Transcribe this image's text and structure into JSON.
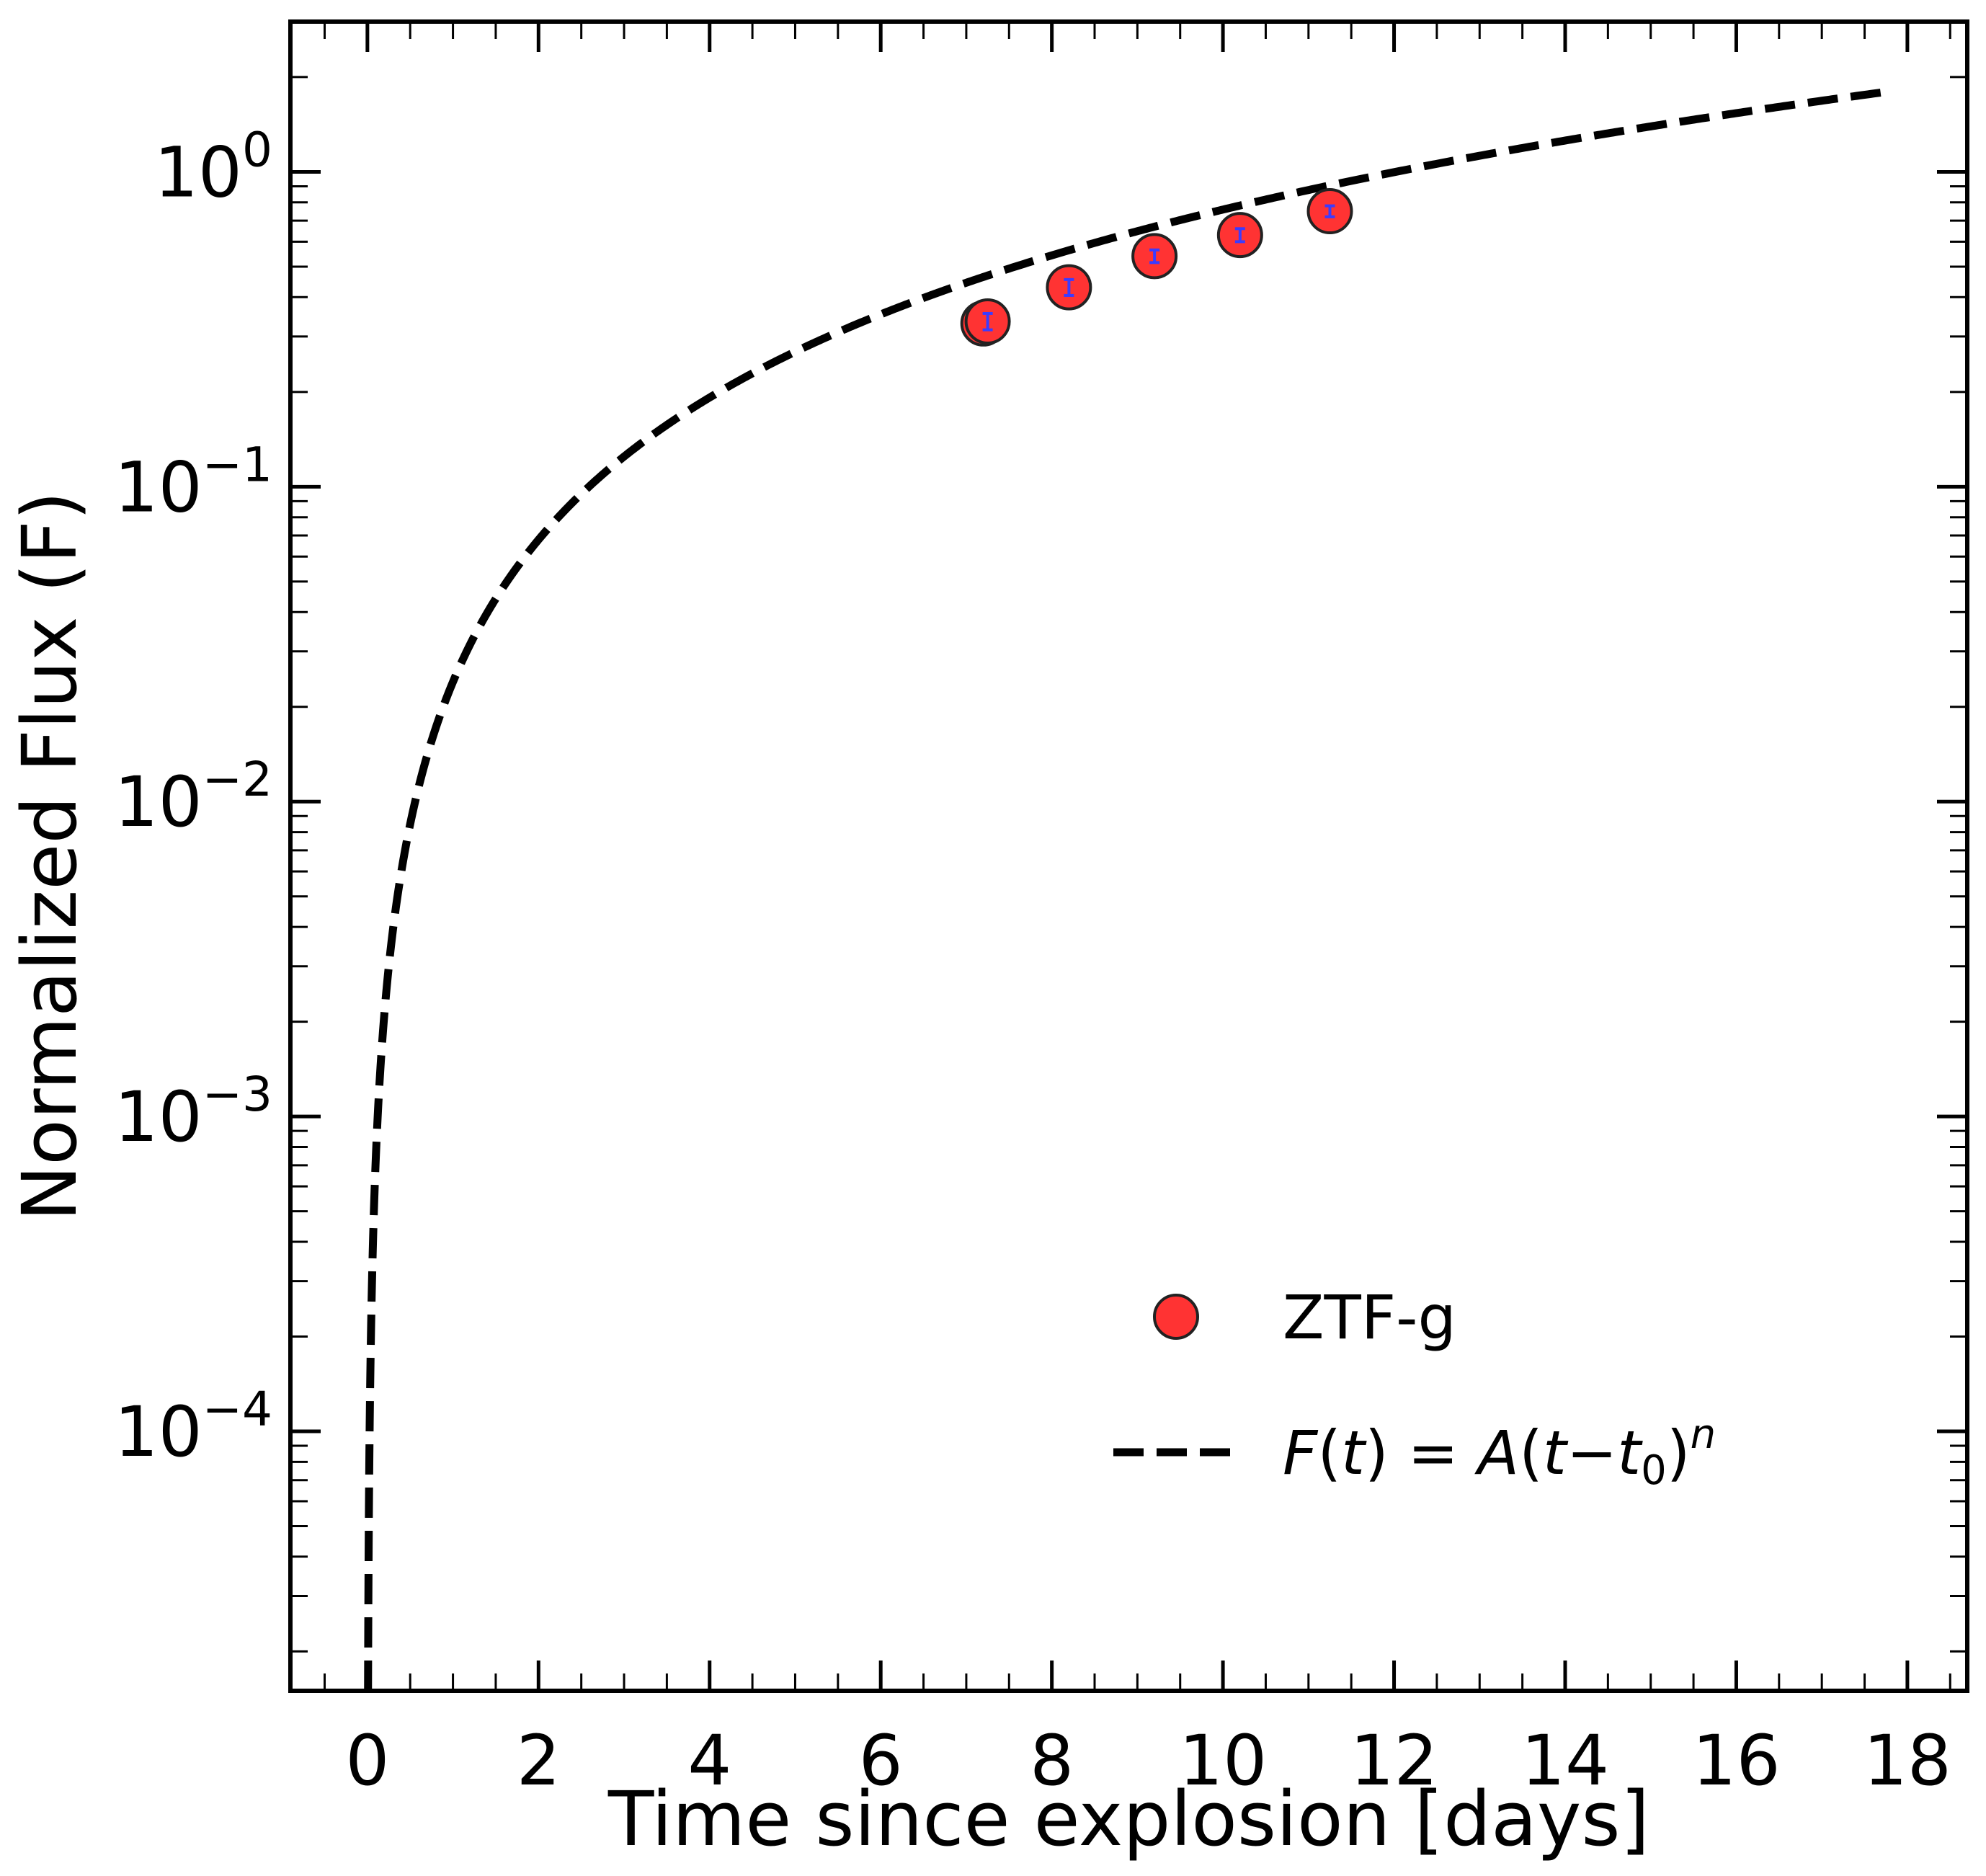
{
  "chart_data": {
    "type": "scatter",
    "xlabel": "Time since explosion [days]",
    "ylabel": "Normalized Flux (F)",
    "xlim": [
      -0.9,
      18.7
    ],
    "ylim": [
      1.5e-05,
      3.0
    ],
    "yscale": "log",
    "xticks": [
      0,
      2,
      4,
      6,
      8,
      10,
      12,
      14,
      16,
      18
    ],
    "xtick_labels": [
      "0",
      "2",
      "4",
      "6",
      "8",
      "10",
      "12",
      "14",
      "16",
      "18"
    ],
    "yticks": [
      0.0001,
      0.001,
      0.01,
      0.1,
      1
    ],
    "ytick_labels": [
      {
        "base": "10",
        "exp": "−4"
      },
      {
        "base": "10",
        "exp": "−3"
      },
      {
        "base": "10",
        "exp": "−2"
      },
      {
        "base": "10",
        "exp": "−1"
      },
      {
        "base": "10",
        "exp": "0"
      }
    ],
    "grid": false,
    "legend_position": "lower-right",
    "series": [
      {
        "name": "ZTF-g",
        "kind": "points",
        "color": "#ff3333",
        "edge_color": "#222222",
        "errorbar_color": "#3b3bff",
        "x": [
          7.2,
          7.25,
          8.2,
          9.2,
          10.2,
          11.25
        ],
        "y": [
          0.33,
          0.335,
          0.43,
          0.54,
          0.63,
          0.75
        ],
        "yerr": [
          0.02,
          0.02,
          0.025,
          0.025,
          0.03,
          0.03
        ]
      },
      {
        "name": "F(t) = A(t − t0)^n",
        "kind": "line",
        "style": "dashed",
        "color": "#000000",
        "model": {
          "A": 0.024,
          "t0": 0.0,
          "n": 1.5
        },
        "x_range": [
          0.0,
          17.7
        ]
      }
    ],
    "legend": [
      {
        "label": "ZTF-g",
        "marker": "circle"
      },
      {
        "label_F": "F",
        "label_t": "t",
        "label_eq": "=",
        "label_A": "A",
        "label_t2": "t",
        "label_minus": "−",
        "label_t0": "t",
        "label_t0_sub": "0",
        "label_n": "n",
        "marker": "dashed-line"
      }
    ]
  }
}
